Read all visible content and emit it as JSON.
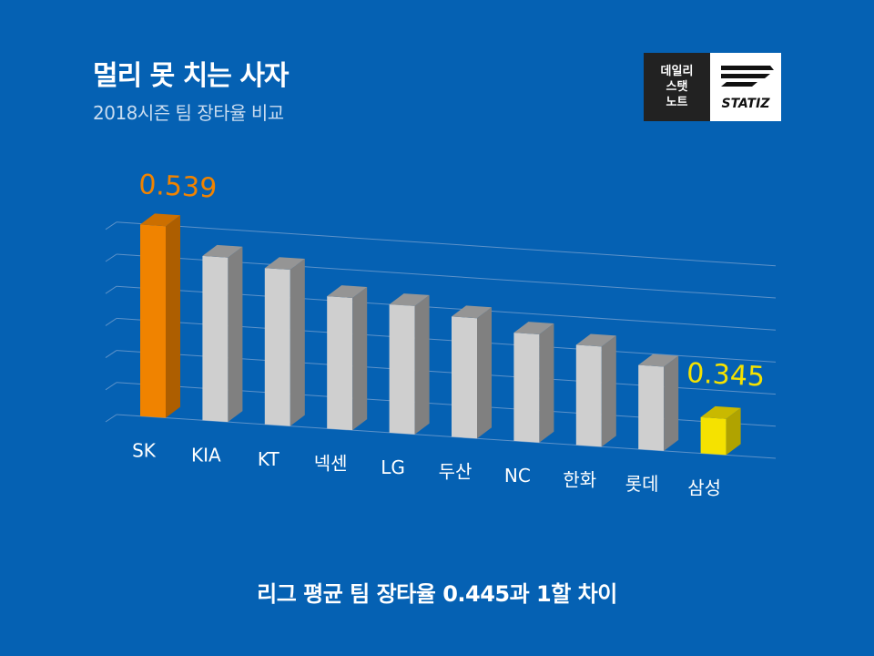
{
  "header": {
    "title": "멀리 못 치는 사자",
    "subtitle": "2018시즌 팀 장타율 비교"
  },
  "logo": {
    "lines": [
      "데일리",
      "스탯",
      "노트"
    ],
    "brand": "STATIZ"
  },
  "caption": "리그 평균 팀 장타율 0.445과 1할 차이",
  "colors": {
    "background": "#0561b3",
    "highlight_top": "#f08300",
    "highlight_bottom": "#f5e200",
    "default_bar": "#cfcfcf"
  },
  "chart_data": {
    "type": "bar",
    "categories": [
      "SK",
      "KIA",
      "KT",
      "넥센",
      "LG",
      "두산",
      "NC",
      "한화",
      "롯데",
      "삼성"
    ],
    "values": [
      0.539,
      0.505,
      0.495,
      0.465,
      0.46,
      0.45,
      0.435,
      0.425,
      0.405,
      0.345
    ],
    "data_labels": [
      {
        "category": "SK",
        "text": "0.539"
      },
      {
        "category": "삼성",
        "text": "0.345"
      }
    ],
    "ylim": [
      0.3,
      0.55
    ],
    "grid": true,
    "xlabel": "",
    "ylabel": ""
  }
}
